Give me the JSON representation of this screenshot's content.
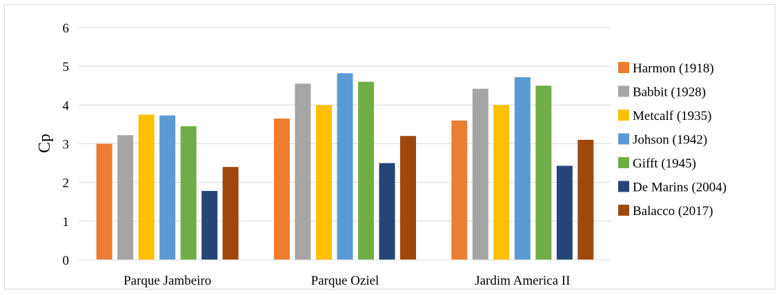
{
  "chart_data": {
    "type": "bar",
    "title": "",
    "xlabel": "",
    "ylabel": "Cp",
    "ylim": [
      0,
      6
    ],
    "yticks": [
      0,
      1,
      2,
      3,
      4,
      5,
      6
    ],
    "grid": true,
    "legend_position": "right",
    "categories": [
      "Parque Jambeiro",
      "Parque Oziel",
      "Jardim America II"
    ],
    "series": [
      {
        "name": "Harmon (1918)",
        "color": "#ED7D31",
        "values": [
          3.0,
          3.65,
          3.6
        ]
      },
      {
        "name": "Babbit (1928)",
        "color": "#A5A5A5",
        "values": [
          3.22,
          4.55,
          4.42
        ]
      },
      {
        "name": "Metcalf (1935)",
        "color": "#FFC000",
        "values": [
          3.75,
          4.0,
          4.0
        ]
      },
      {
        "name": "Johson (1942)",
        "color": "#5B9BD5",
        "values": [
          3.73,
          4.82,
          4.72
        ]
      },
      {
        "name": "Gifft (1945)",
        "color": "#70AD47",
        "values": [
          3.45,
          4.6,
          4.5
        ]
      },
      {
        "name": "De Marins (2004)",
        "color": "#264478",
        "values": [
          1.78,
          2.5,
          2.43
        ]
      },
      {
        "name": "Balacco (2017)",
        "color": "#9E480E",
        "values": [
          2.4,
          3.2,
          3.1
        ]
      }
    ]
  }
}
